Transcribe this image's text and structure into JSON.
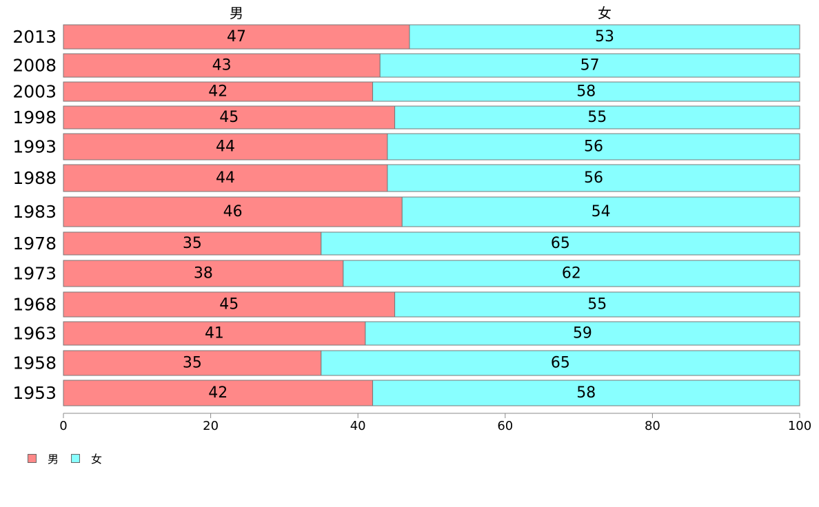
{
  "chart_data": {
    "type": "bar",
    "orientation": "horizontal",
    "stacked": "percent",
    "categories": [
      "2013",
      "2008",
      "2003",
      "1998",
      "1993",
      "1988",
      "1983",
      "1978",
      "1973",
      "1968",
      "1963",
      "1958",
      "1953"
    ],
    "series": [
      {
        "name": "男",
        "color": "#ff8888",
        "values": [
          47,
          43,
          42,
          45,
          44,
          44,
          46,
          35,
          38,
          45,
          41,
          35,
          42
        ]
      },
      {
        "name": "女",
        "color": "#88ffff",
        "values": [
          53,
          57,
          58,
          55,
          56,
          56,
          54,
          65,
          62,
          55,
          59,
          65,
          58
        ]
      }
    ],
    "xlim": [
      0,
      100
    ],
    "xticks": [
      "0",
      "20",
      "40",
      "60",
      "80",
      "100"
    ],
    "grid": false,
    "legend": "bottom-left",
    "top_labels": [
      "男",
      "女"
    ],
    "bar_border_color": "#777777"
  }
}
